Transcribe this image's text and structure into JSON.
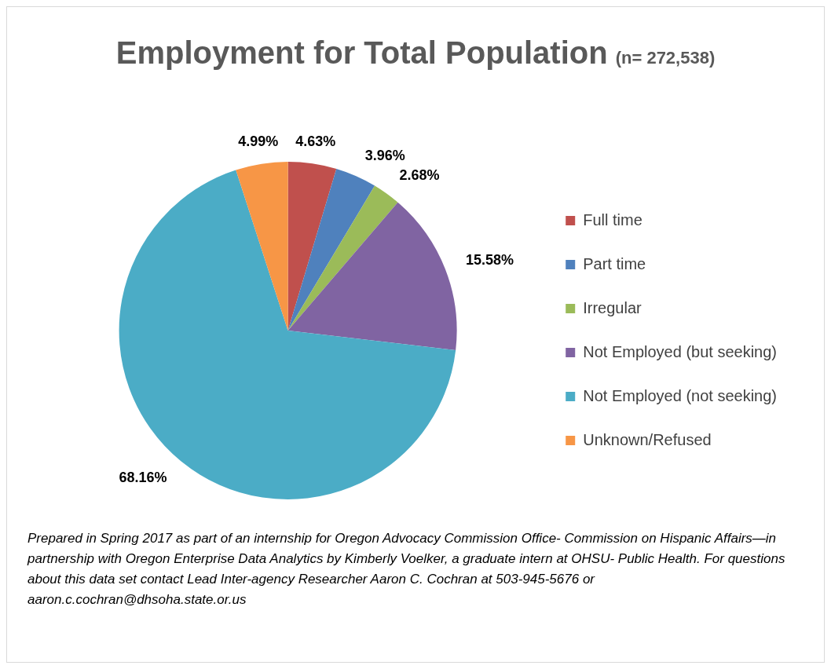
{
  "chart_data": {
    "type": "pie",
    "title": "Employment for Total Population",
    "subtitle": "(n= 272,538)",
    "categories": [
      "Full time",
      "Part time",
      "Irregular",
      "Not Employed (but seeking)",
      "Not Employed (not seeking)",
      "Unknown/Refused"
    ],
    "values": [
      4.63,
      3.96,
      2.68,
      15.58,
      68.16,
      4.99
    ],
    "value_labels": [
      "4.63%",
      "3.96%",
      "2.68%",
      "15.58%",
      "68.16%",
      "4.99%"
    ],
    "colors": [
      "#c0504d",
      "#4f81bd",
      "#9bbb59",
      "#8064a2",
      "#4bacc6",
      "#f79646"
    ],
    "legend": "right",
    "annotations": [
      "Prepared in Spring 2017 as part of an internship for Oregon Advocacy Commission Office- Commission on Hispanic Affairs—in partnership with Oregon Enterprise Data Analytics by Kimberly Voelker, a graduate intern at OHSU- Public Health. For questions about this data set contact Lead Inter-agency Researcher Aaron C. Cochran at 503-945-5676 or aaron.c.cochran@dhsoha.state.or.us"
    ]
  }
}
